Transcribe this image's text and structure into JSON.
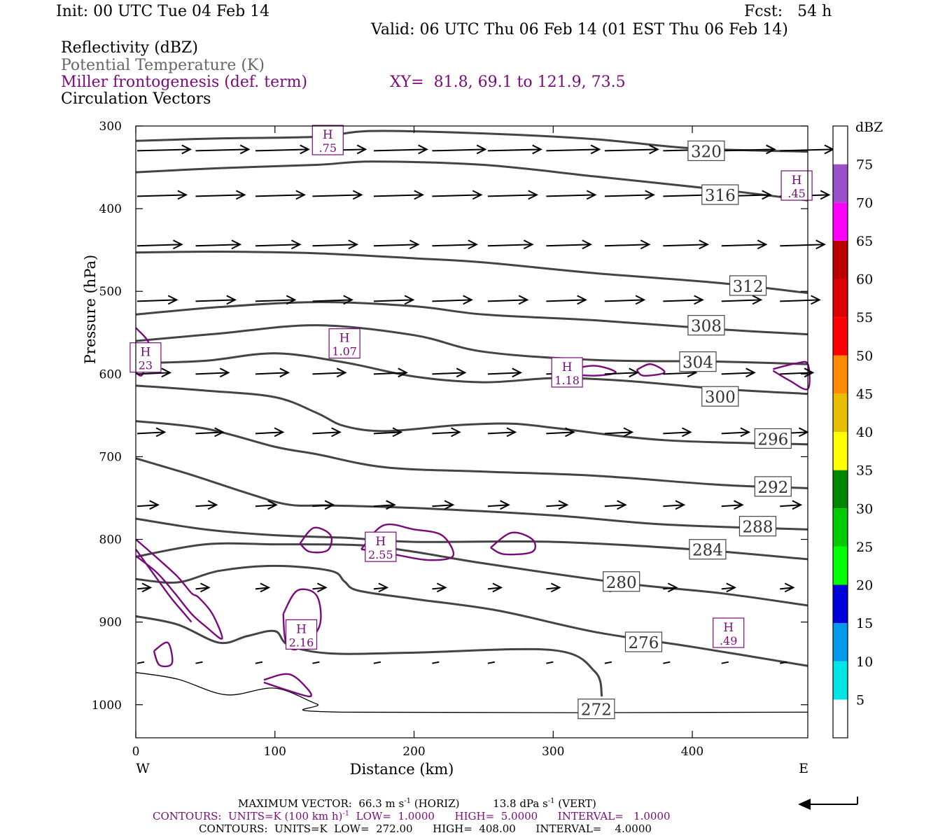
{
  "header": {
    "init": "Init: 00 UTC Tue 04 Feb 14",
    "fcst": "Fcst:   54 h",
    "valid": "Valid: 06 UTC Thu 06 Feb 14 (01 EST Thu 06 Feb 14)",
    "fields": [
      "Reflectivity (dBZ)",
      "Potential Temperature (K)",
      "Miller frontogenesis (def. term)",
      "Circulation Vectors"
    ],
    "xy": "XY=  81.8, 69.1 to 121.9, 73.5"
  },
  "colors": {
    "theta": "#444444",
    "fronto": "#7a0a7a",
    "vector": "#000000",
    "dbz_scale": [
      "#ffffff",
      "#00e5e5",
      "#0099ee",
      "#0000dd",
      "#00ff00",
      "#00cc00",
      "#008800",
      "#ffff00",
      "#e6c000",
      "#ff8c00",
      "#ff0000",
      "#dd0000",
      "#bb0000",
      "#ff00ff",
      "#9a50c8",
      "#ffffff"
    ]
  },
  "footer": {
    "line1_left": "MAXIMUM VECTOR:  66.3 m s",
    "line1_sup1": "-1",
    "line1_mid": " (HORIZ)          13.8 dPa s",
    "line1_sup2": "-1",
    "line1_right": " (VERT)",
    "line2_left": "CONTOURS:  UNITS=K (100 km h)",
    "line2_sup": "-1",
    "line2_right": "  LOW=  1.0000      HIGH=  5.0000      INTERVAL=   1.0000",
    "line3": "CONTOURS:  UNITS=K  LOW=  272.00      HIGH=  408.00      INTERVAL=    4.0000"
  },
  "chart_data": {
    "type": "line",
    "xlabel": "Distance (km)",
    "ylabel": "Pressure (hPa)",
    "xlim": [
      0,
      483
    ],
    "ylim": [
      1040,
      300
    ],
    "x_ticks": [
      0,
      100,
      200,
      300,
      400
    ],
    "y_ticks": [
      300,
      400,
      500,
      600,
      700,
      800,
      900,
      1000
    ],
    "x_end_labels": {
      "left": "W",
      "right": "E"
    },
    "colorbar": {
      "unit": "dBZ",
      "levels": [
        5,
        10,
        15,
        20,
        25,
        30,
        35,
        40,
        45,
        50,
        55,
        60,
        65,
        70,
        75
      ]
    },
    "theta_contours": [
      {
        "label": "320",
        "points": [
          [
            0,
            318
          ],
          [
            60,
            315
          ],
          [
            130,
            313
          ],
          [
            170,
            306
          ],
          [
            250,
            309
          ],
          [
            330,
            316
          ],
          [
            400,
            327
          ],
          [
            483,
            331
          ]
        ],
        "label_at": [
          410,
          330
        ]
      },
      {
        "label": "316",
        "points": [
          [
            0,
            356
          ],
          [
            60,
            351
          ],
          [
            130,
            347
          ],
          [
            170,
            343
          ],
          [
            250,
            347
          ],
          [
            330,
            361
          ],
          [
            420,
            377
          ],
          [
            483,
            390
          ]
        ],
        "label_at": [
          420,
          383
        ]
      },
      {
        "label": "312",
        "points": [
          [
            0,
            453
          ],
          [
            60,
            452
          ],
          [
            130,
            454
          ],
          [
            200,
            460
          ],
          [
            250,
            465
          ],
          [
            330,
            478
          ],
          [
            420,
            490
          ],
          [
            483,
            502
          ]
        ],
        "label_at": [
          440,
          493
        ]
      },
      {
        "label": "308",
        "points": [
          [
            0,
            528
          ],
          [
            60,
            519
          ],
          [
            130,
            513
          ],
          [
            200,
            518
          ],
          [
            250,
            528
          ],
          [
            330,
            535
          ],
          [
            420,
            546
          ],
          [
            483,
            552
          ]
        ],
        "label_at": [
          410,
          541
        ]
      },
      {
        "label": "304",
        "points": [
          [
            0,
            560
          ],
          [
            60,
            551
          ],
          [
            130,
            541
          ],
          [
            200,
            553
          ],
          [
            250,
            573
          ],
          [
            330,
            583
          ],
          [
            420,
            585
          ],
          [
            483,
            588
          ]
        ],
        "label_at": [
          404,
          585
        ]
      },
      {
        "label": "300",
        "points": [
          [
            0,
            587
          ],
          [
            50,
            584
          ],
          [
            100,
            575
          ],
          [
            150,
            586
          ],
          [
            200,
            603
          ],
          [
            250,
            610
          ],
          [
            300,
            605
          ],
          [
            350,
            608
          ],
          [
            420,
            618
          ],
          [
            483,
            624
          ]
        ],
        "label_at": [
          420,
          627
        ]
      },
      {
        "label": "296",
        "points": [
          [
            0,
            614
          ],
          [
            50,
            620
          ],
          [
            100,
            628
          ],
          [
            130,
            647
          ],
          [
            150,
            663
          ],
          [
            180,
            669
          ],
          [
            230,
            662
          ],
          [
            270,
            660
          ],
          [
            300,
            665
          ],
          [
            380,
            680
          ],
          [
            483,
            685
          ]
        ],
        "label_at": [
          458,
          678
        ]
      },
      {
        "label": "292",
        "points": [
          [
            0,
            657
          ],
          [
            50,
            666
          ],
          [
            100,
            688
          ],
          [
            130,
            697
          ],
          [
            180,
            713
          ],
          [
            250,
            718
          ],
          [
            330,
            723
          ],
          [
            420,
            734
          ],
          [
            483,
            738
          ]
        ],
        "label_at": [
          458,
          736
        ]
      },
      {
        "label": "288",
        "points": [
          [
            0,
            702
          ],
          [
            40,
            722
          ],
          [
            80,
            744
          ],
          [
            110,
            758
          ],
          [
            140,
            759
          ],
          [
            200,
            762
          ],
          [
            300,
            771
          ],
          [
            380,
            782
          ],
          [
            483,
            788
          ]
        ],
        "label_at": [
          447,
          784
        ]
      },
      {
        "label": "284",
        "points": [
          [
            0,
            775
          ],
          [
            50,
            788
          ],
          [
            100,
            795
          ],
          [
            150,
            798
          ],
          [
            200,
            803
          ],
          [
            300,
            803
          ],
          [
            400,
            812
          ],
          [
            483,
            824
          ]
        ],
        "label_at": [
          411,
          812
        ]
      },
      {
        "label": "280",
        "points": [
          [
            0,
            821
          ],
          [
            50,
            806
          ],
          [
            100,
            806
          ],
          [
            160,
            807
          ],
          [
            200,
            815
          ],
          [
            250,
            829
          ],
          [
            350,
            853
          ],
          [
            420,
            865
          ],
          [
            483,
            880
          ]
        ],
        "label_at": [
          349,
          851
        ]
      },
      {
        "label": "276",
        "points": [
          [
            0,
            848
          ],
          [
            30,
            852
          ],
          [
            60,
            838
          ],
          [
            100,
            832
          ],
          [
            140,
            838
          ],
          [
            150,
            851
          ],
          [
            160,
            862
          ],
          [
            200,
            872
          ],
          [
            260,
            886
          ],
          [
            330,
            912
          ],
          [
            400,
            930
          ],
          [
            483,
            953
          ]
        ],
        "label_at": [
          365,
          924
        ]
      },
      {
        "label": "272",
        "points": [
          [
            0,
            893
          ],
          [
            30,
            903
          ],
          [
            60,
            925
          ],
          [
            80,
            917
          ],
          [
            100,
            911
          ],
          [
            110,
            928
          ],
          [
            140,
            938
          ],
          [
            200,
            937
          ],
          [
            300,
            934
          ],
          [
            330,
            960
          ],
          [
            335,
            990
          ]
        ],
        "label_at": [
          331,
          1005
        ]
      },
      {
        "label": "",
        "points": [
          [
            0,
            961
          ],
          [
            30,
            969
          ],
          [
            65,
            988
          ],
          [
            100,
            980
          ],
          [
            130,
            999
          ],
          [
            150,
            1009
          ],
          [
            483,
            1009
          ]
        ],
        "label_at": null
      }
    ],
    "frontogenesis_highs": [
      {
        "label_h": "H",
        "value": ".75",
        "x": 138,
        "p": 317
      },
      {
        "label_h": "H",
        "value": ".45",
        "x": 475,
        "p": 372
      },
      {
        "label_h": "H",
        "value": "1.07",
        "x": 150,
        "p": 563
      },
      {
        "label_h": "H",
        "value": "23",
        "x": 7,
        "p": 580
      },
      {
        "label_h": "H",
        "value": "1.18",
        "x": 310,
        "p": 598
      },
      {
        "label_h": "H",
        "value": "2.55",
        "x": 176,
        "p": 809
      },
      {
        "label_h": "H",
        "value": "2.16",
        "x": 119,
        "p": 915
      },
      {
        "label_h": "H",
        "value": ".49",
        "x": 426,
        "p": 913
      }
    ],
    "frontogenesis_contours": [
      [
        [
          0,
          544
        ],
        [
          10,
          566
        ],
        [
          5,
          600
        ],
        [
          0,
          598
        ]
      ],
      [
        [
          310,
          595
        ],
        [
          330,
          590
        ],
        [
          345,
          598
        ],
        [
          330,
          602
        ],
        [
          310,
          600
        ]
      ],
      [
        [
          360,
          595
        ],
        [
          370,
          588
        ],
        [
          380,
          598
        ],
        [
          365,
          602
        ],
        [
          360,
          595
        ]
      ],
      [
        [
          458,
          594
        ],
        [
          475,
          587
        ],
        [
          483,
          588
        ],
        [
          483,
          618
        ],
        [
          470,
          608
        ],
        [
          458,
          596
        ]
      ],
      [
        [
          118,
          805
        ],
        [
          128,
          786
        ],
        [
          140,
          795
        ],
        [
          138,
          813
        ],
        [
          125,
          815
        ],
        [
          118,
          805
        ]
      ],
      [
        [
          162,
          812
        ],
        [
          178,
          783
        ],
        [
          200,
          788
        ],
        [
          220,
          795
        ],
        [
          228,
          820
        ],
        [
          210,
          825
        ],
        [
          185,
          818
        ],
        [
          162,
          812
        ]
      ],
      [
        [
          255,
          810
        ],
        [
          270,
          792
        ],
        [
          285,
          800
        ],
        [
          285,
          815
        ],
        [
          265,
          818
        ],
        [
          255,
          810
        ]
      ],
      [
        [
          0,
          800
        ],
        [
          15,
          822
        ],
        [
          30,
          845
        ],
        [
          40,
          865
        ],
        [
          45,
          870
        ],
        [
          55,
          890
        ],
        [
          62,
          920
        ],
        [
          50,
          905
        ],
        [
          40,
          890
        ],
        [
          28,
          865
        ],
        [
          15,
          840
        ],
        [
          0,
          820
        ]
      ],
      [
        [
          0,
          812
        ],
        [
          12,
          840
        ],
        [
          25,
          870
        ],
        [
          35,
          890
        ],
        [
          40,
          900
        ]
      ],
      [
        [
          13,
          935
        ],
        [
          23,
          925
        ],
        [
          26,
          950
        ],
        [
          17,
          952
        ],
        [
          13,
          935
        ]
      ],
      [
        [
          106,
          890
        ],
        [
          116,
          862
        ],
        [
          130,
          868
        ],
        [
          132,
          905
        ],
        [
          117,
          932
        ],
        [
          108,
          925
        ],
        [
          106,
          890
        ]
      ],
      [
        [
          92,
          970
        ],
        [
          110,
          963
        ],
        [
          123,
          980
        ],
        [
          125,
          990
        ],
        [
          108,
          982
        ],
        [
          92,
          973
        ]
      ]
    ],
    "circulation_vector_rows": [
      {
        "p": 330,
        "x": [
          0,
          42,
          85,
          126,
          170,
          212,
          252,
          294,
          336,
          378,
          420,
          462
        ]
      },
      {
        "p": 385,
        "x": [
          0,
          42,
          85,
          126,
          170,
          212,
          252,
          294,
          336,
          378,
          420,
          462
        ]
      },
      {
        "p": 445,
        "x": [
          0,
          42,
          85,
          126,
          170,
          212,
          252,
          294,
          336,
          378,
          420,
          462
        ]
      },
      {
        "p": 512,
        "x": [
          0,
          42,
          85,
          126,
          170,
          212,
          252,
          294,
          336,
          378,
          420,
          462
        ]
      },
      {
        "p": 600,
        "x": [
          0,
          42,
          85,
          126,
          170,
          212,
          252,
          294,
          336,
          378,
          420,
          462
        ]
      },
      {
        "p": 672,
        "x": [
          0,
          42,
          85,
          126,
          170,
          212,
          252,
          294,
          336,
          378,
          420,
          462
        ]
      },
      {
        "p": 760,
        "x": [
          0,
          42,
          85,
          126,
          170,
          212,
          252,
          294,
          336,
          378,
          420,
          462
        ]
      },
      {
        "p": 860,
        "x": [
          0,
          42,
          85,
          126,
          170,
          212,
          252,
          294,
          336,
          378,
          420,
          462
        ]
      },
      {
        "p": 950,
        "x": [
          0,
          42,
          85,
          126,
          170,
          212,
          252,
          294,
          336,
          378,
          420,
          462
        ]
      }
    ]
  }
}
